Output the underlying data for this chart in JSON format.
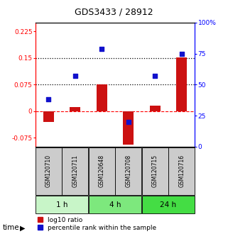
{
  "title": "GDS3433 / 28912",
  "samples": [
    "GSM120710",
    "GSM120711",
    "GSM120648",
    "GSM120708",
    "GSM120715",
    "GSM120716"
  ],
  "time_groups": [
    {
      "label": "1 h",
      "indices": [
        0,
        1
      ],
      "color": "#c8f5c8"
    },
    {
      "label": "4 h",
      "indices": [
        2,
        3
      ],
      "color": "#7de87d"
    },
    {
      "label": "24 h",
      "indices": [
        4,
        5
      ],
      "color": "#44dd44"
    }
  ],
  "log10_ratio": [
    -0.03,
    0.012,
    0.075,
    -0.095,
    0.015,
    0.152
  ],
  "percentile_rank": [
    38,
    57,
    79,
    20,
    57,
    75
  ],
  "left_ylim": [
    -0.1,
    0.25
  ],
  "right_ylim": [
    0,
    100
  ],
  "left_yticks": [
    -0.075,
    0,
    0.075,
    0.15,
    0.225
  ],
  "right_yticks": [
    0,
    25,
    50,
    75,
    100
  ],
  "hline_dashed_red": 0.0,
  "hline_dotted_black": [
    0.075,
    0.15
  ],
  "bar_color": "#cc1111",
  "dot_color": "#1111cc",
  "bar_width": 0.4,
  "dot_size": 22,
  "background_color": "#ffffff",
  "sample_box_color": "#cccccc",
  "title_fontsize": 9,
  "tick_fontsize": 6.5,
  "sample_fontsize": 5.5,
  "time_fontsize": 7.5,
  "legend_fontsize": 6.5
}
